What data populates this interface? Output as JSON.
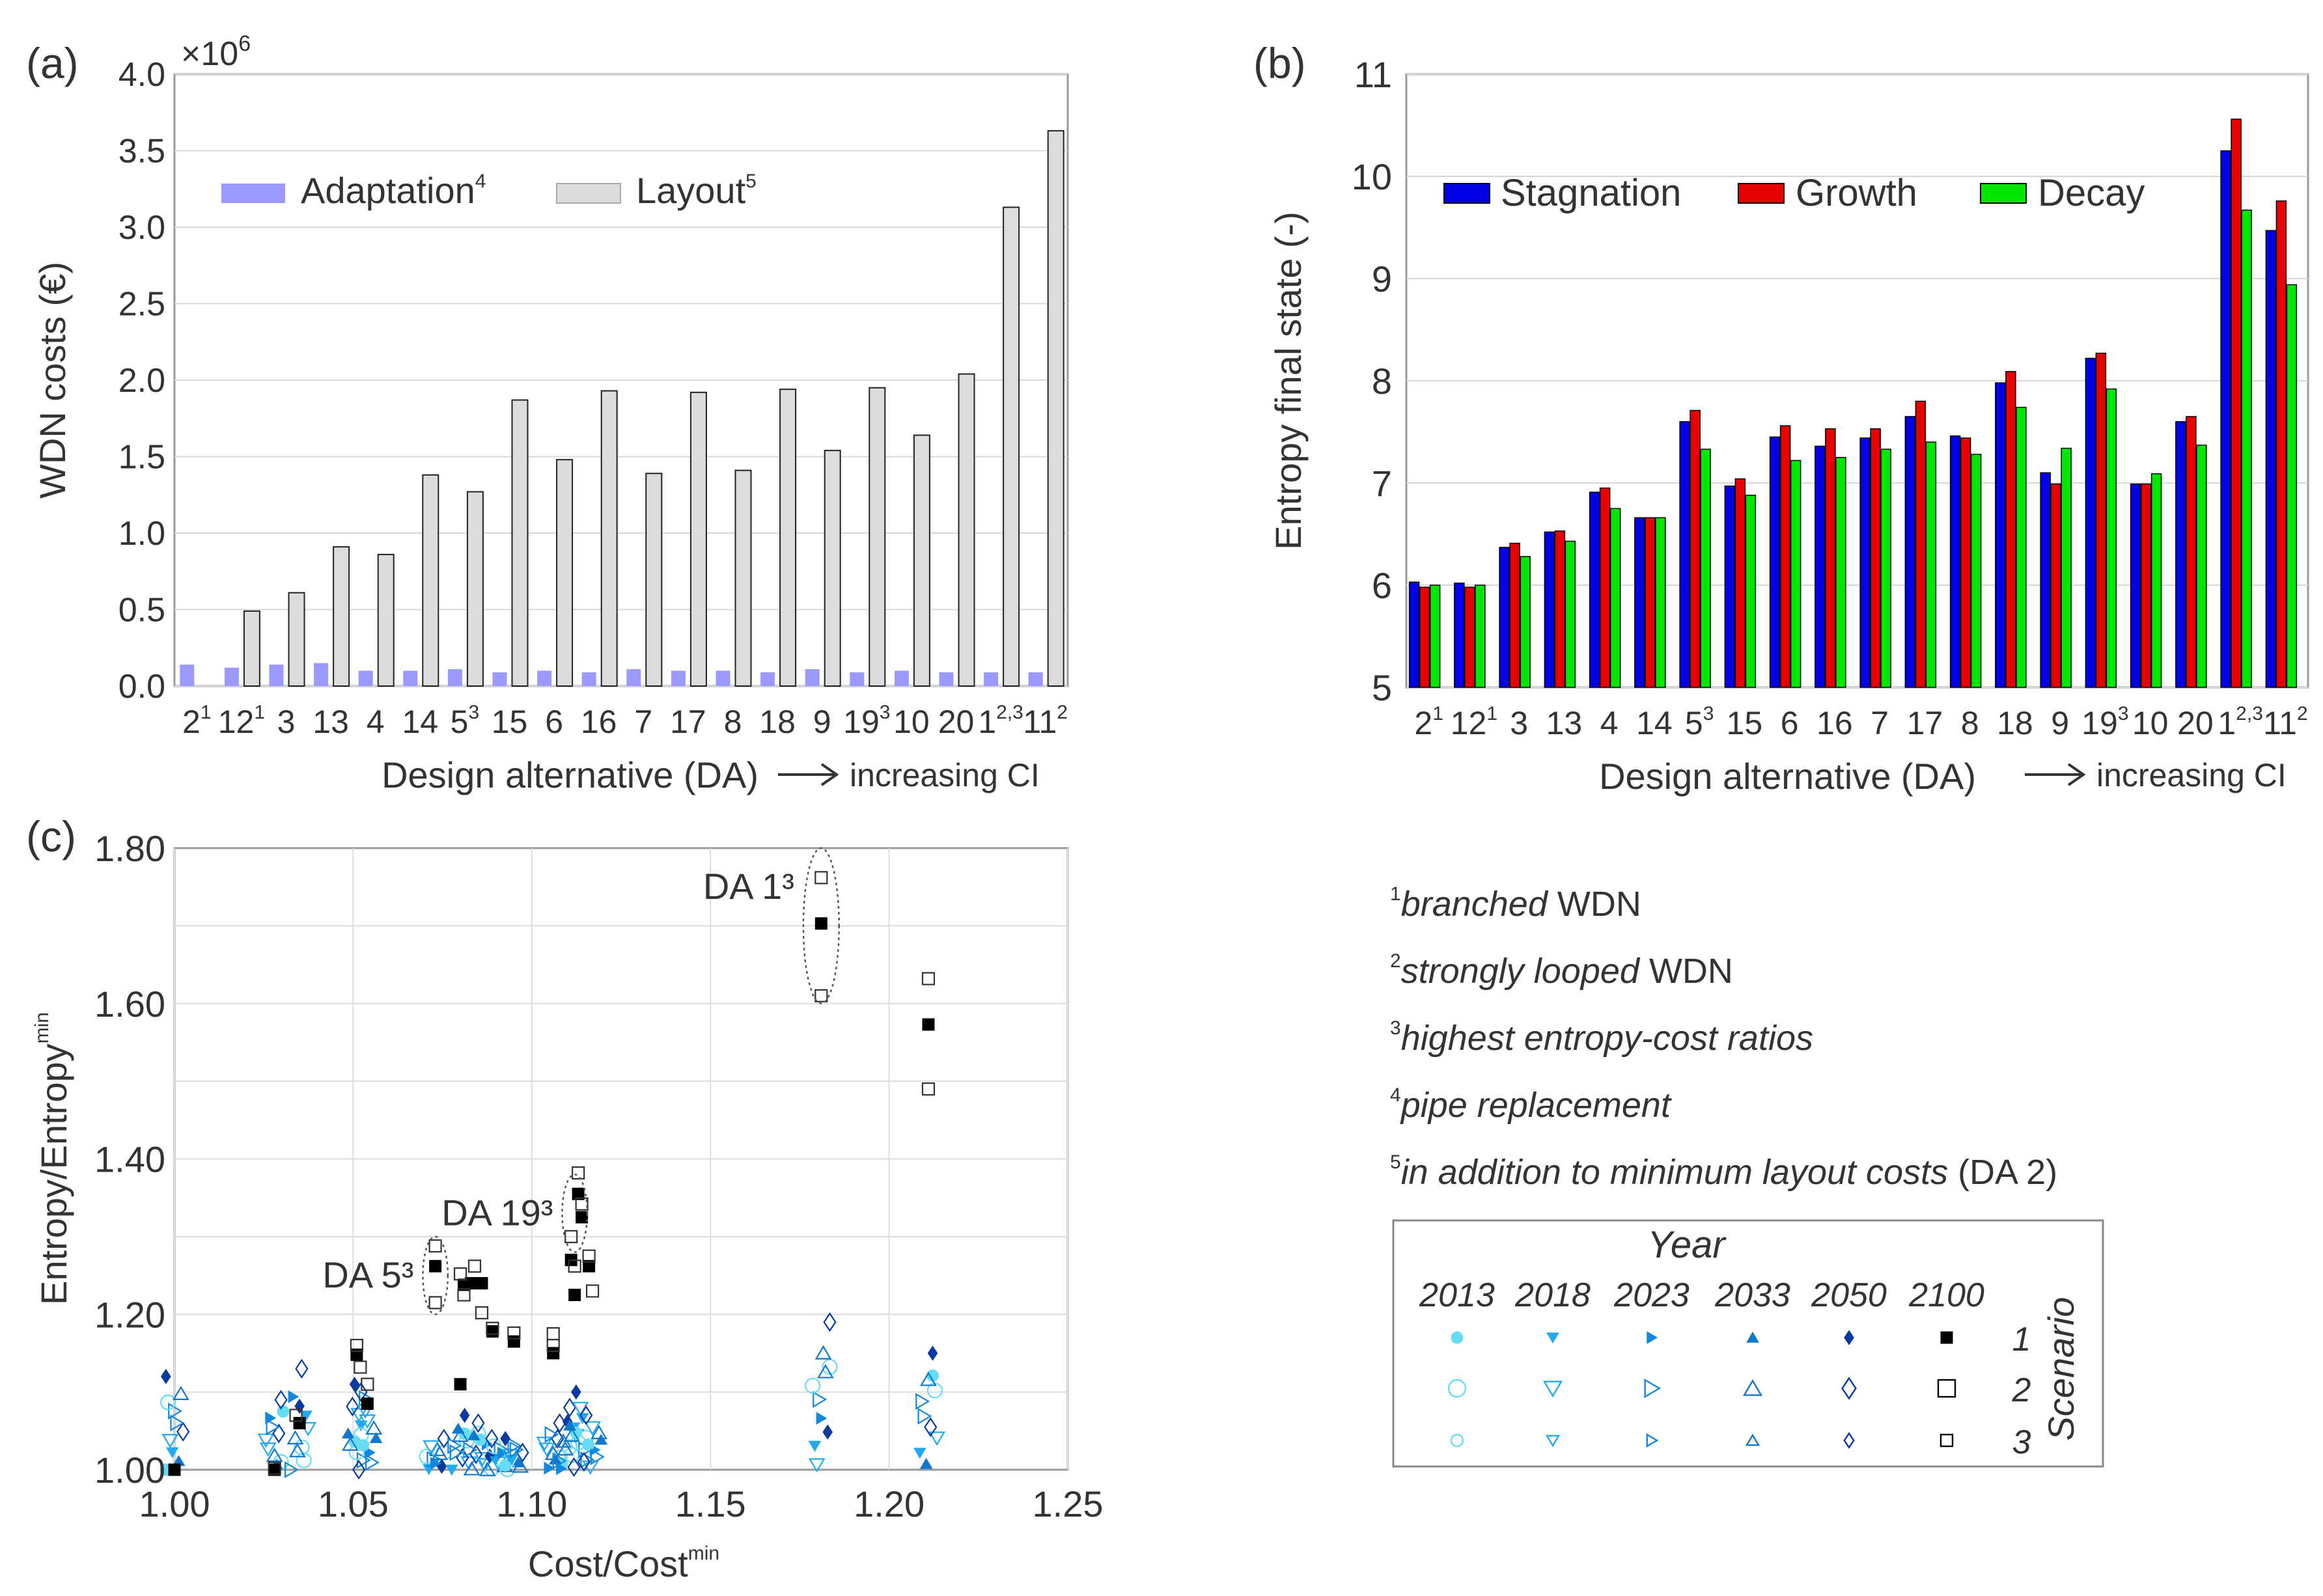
{
  "colors": {
    "adaptation": "#9999ff",
    "layout": "#dcdcdc",
    "stagnation": "#0000e6",
    "growth": "#e60000",
    "decay": "#00e600",
    "y2013": "#66ddf5",
    "y2018": "#22aaee",
    "y2023": "#1188dd",
    "y2033": "#1177cc",
    "y2050": "#0a3a9e",
    "y2100": "#000000"
  },
  "chart_data": [
    {
      "panel": "(a)",
      "type": "bar",
      "xlabel": "Design alternative (DA)",
      "arrow_label": "increasing CI",
      "ylabel": "WDN costs (€)",
      "exponent": "×10",
      "exponent_power": "6",
      "ylim": [
        0,
        4
      ],
      "yticks": [
        "0.0",
        "0.5",
        "1.0",
        "1.5",
        "2.0",
        "2.5",
        "3.0",
        "3.5",
        "4.0"
      ],
      "categories": [
        {
          "n": "2",
          "sup": "1"
        },
        {
          "n": "12",
          "sup": "1"
        },
        {
          "n": "3",
          "sup": ""
        },
        {
          "n": "13",
          "sup": ""
        },
        {
          "n": "4",
          "sup": ""
        },
        {
          "n": "14",
          "sup": ""
        },
        {
          "n": "5",
          "sup": "3"
        },
        {
          "n": "15",
          "sup": ""
        },
        {
          "n": "6",
          "sup": ""
        },
        {
          "n": "16",
          "sup": ""
        },
        {
          "n": "7",
          "sup": ""
        },
        {
          "n": "17",
          "sup": ""
        },
        {
          "n": "8",
          "sup": ""
        },
        {
          "n": "18",
          "sup": ""
        },
        {
          "n": "9",
          "sup": ""
        },
        {
          "n": "19",
          "sup": "3"
        },
        {
          "n": "10",
          "sup": ""
        },
        {
          "n": "20",
          "sup": ""
        },
        {
          "n": "1",
          "sup": "2,3"
        },
        {
          "n": "11",
          "sup": "2"
        }
      ],
      "series": [
        {
          "name": "Adaptation",
          "sup": "4",
          "values": [
            0.14,
            0.12,
            0.14,
            0.15,
            0.1,
            0.1,
            0.11,
            0.09,
            0.1,
            0.09,
            0.11,
            0.1,
            0.1,
            0.09,
            0.11,
            0.09,
            0.1,
            0.09,
            0.09,
            0.09
          ]
        },
        {
          "name": "Layout",
          "sup": "5",
          "values": [
            0.0,
            0.49,
            0.61,
            0.91,
            0.86,
            1.38,
            1.27,
            1.87,
            1.48,
            1.93,
            1.39,
            1.92,
            1.41,
            1.94,
            1.54,
            1.95,
            1.64,
            2.04,
            3.13,
            3.63
          ]
        }
      ]
    },
    {
      "panel": "(b)",
      "type": "bar",
      "xlabel": "Design alternative (DA)",
      "arrow_label": "increasing CI",
      "ylabel": "Entropy final state (-)",
      "ylim": [
        5,
        11
      ],
      "yticks": [
        "5",
        "6",
        "7",
        "8",
        "9",
        "10",
        "11"
      ],
      "categories": [
        {
          "n": "2",
          "sup": "1"
        },
        {
          "n": "12",
          "sup": "1"
        },
        {
          "n": "3",
          "sup": ""
        },
        {
          "n": "13",
          "sup": ""
        },
        {
          "n": "4",
          "sup": ""
        },
        {
          "n": "14",
          "sup": ""
        },
        {
          "n": "5",
          "sup": "3"
        },
        {
          "n": "15",
          "sup": ""
        },
        {
          "n": "6",
          "sup": ""
        },
        {
          "n": "16",
          "sup": ""
        },
        {
          "n": "7",
          "sup": ""
        },
        {
          "n": "17",
          "sup": ""
        },
        {
          "n": "8",
          "sup": ""
        },
        {
          "n": "18",
          "sup": ""
        },
        {
          "n": "9",
          "sup": ""
        },
        {
          "n": "19",
          "sup": "3"
        },
        {
          "n": "10",
          "sup": ""
        },
        {
          "n": "20",
          "sup": ""
        },
        {
          "n": "1",
          "sup": "2,3"
        },
        {
          "n": "11",
          "sup": "2"
        }
      ],
      "series": [
        {
          "name": "Stagnation",
          "values": [
            6.03,
            6.02,
            6.37,
            6.52,
            6.91,
            6.66,
            7.6,
            6.97,
            7.45,
            7.36,
            7.44,
            7.65,
            7.46,
            7.98,
            7.1,
            8.22,
            6.99,
            7.6,
            10.25,
            9.47
          ]
        },
        {
          "name": "Growth",
          "values": [
            5.98,
            5.98,
            6.41,
            6.53,
            6.95,
            6.66,
            7.71,
            7.04,
            7.56,
            7.53,
            7.53,
            7.8,
            7.44,
            8.09,
            6.99,
            8.27,
            6.99,
            7.65,
            10.56,
            9.76
          ]
        },
        {
          "name": "Decay",
          "values": [
            6.0,
            6.0,
            6.28,
            6.43,
            6.75,
            6.66,
            7.33,
            6.88,
            7.22,
            7.25,
            7.33,
            7.4,
            7.28,
            7.74,
            7.34,
            7.92,
            7.09,
            7.37,
            9.67,
            8.94
          ]
        }
      ]
    },
    {
      "panel": "(c)",
      "type": "scatter",
      "xlabel": "Cost/Cost",
      "xlabel_sup": "min",
      "ylabel": "Entropy/Entropy",
      "ylabel_sup": "min",
      "xlim": [
        1.0,
        1.25
      ],
      "ylim": [
        1.0,
        1.8
      ],
      "xticks": [
        "1.00",
        "1.05",
        "1.10",
        "1.15",
        "1.20",
        "1.25"
      ],
      "yticks": [
        "1.00",
        "1.20",
        "1.40",
        "1.60",
        "1.80"
      ],
      "annotations": [
        {
          "text": "DA 1³",
          "x": 1.181,
          "y": 1.7,
          "rx": 0.005,
          "ry": 0.1
        },
        {
          "text": "DA 19³",
          "x": 1.112,
          "y": 1.33,
          "rx": 0.0035,
          "ry": 0.05
        },
        {
          "text": "DA 5³",
          "x": 1.073,
          "y": 1.25,
          "rx": 0.0035,
          "ry": 0.05
        }
      ],
      "points_s1_2100": [
        [
          1.0,
          1.0
        ],
        [
          1.028,
          1.0
        ],
        [
          1.035,
          1.06
        ],
        [
          1.051,
          1.148
        ],
        [
          1.054,
          1.085
        ],
        [
          1.073,
          1.262
        ],
        [
          1.08,
          1.11
        ],
        [
          1.081,
          1.238
        ],
        [
          1.083,
          1.24
        ],
        [
          1.086,
          1.24
        ],
        [
          1.089,
          1.178
        ],
        [
          1.095,
          1.165
        ],
        [
          1.106,
          1.15
        ],
        [
          1.111,
          1.27
        ],
        [
          1.112,
          1.225
        ],
        [
          1.113,
          1.355
        ],
        [
          1.114,
          1.325
        ],
        [
          1.116,
          1.262
        ],
        [
          1.181,
          1.703
        ],
        [
          1.211,
          1.573
        ]
      ],
      "points_s23_2100": [
        [
          1.028,
          1.002
        ],
        [
          1.034,
          1.07
        ],
        [
          1.051,
          1.16
        ],
        [
          1.052,
          1.132
        ],
        [
          1.054,
          1.11
        ],
        [
          1.073,
          1.288
        ],
        [
          1.073,
          1.215
        ],
        [
          1.08,
          1.252
        ],
        [
          1.081,
          1.225
        ],
        [
          1.084,
          1.262
        ],
        [
          1.086,
          1.202
        ],
        [
          1.089,
          1.182
        ],
        [
          1.095,
          1.176
        ],
        [
          1.106,
          1.175
        ],
        [
          1.106,
          1.16
        ],
        [
          1.111,
          1.3
        ],
        [
          1.112,
          1.262
        ],
        [
          1.113,
          1.382
        ],
        [
          1.114,
          1.342
        ],
        [
          1.116,
          1.275
        ],
        [
          1.117,
          1.23
        ],
        [
          1.181,
          1.762
        ],
        [
          1.181,
          1.61
        ],
        [
          1.211,
          1.632
        ],
        [
          1.211,
          1.49
        ]
      ],
      "cluster_x": [
        1.0,
        1.028,
        1.035,
        1.051,
        1.054,
        1.073,
        1.08,
        1.085,
        1.09,
        1.095,
        1.106,
        1.11,
        1.113,
        1.117,
        1.181,
        1.211
      ],
      "cluster_ymax": [
        1.12,
        1.09,
        1.13,
        1.11,
        1.1,
        1.04,
        1.07,
        1.06,
        1.04,
        1.04,
        1.06,
        1.08,
        1.1,
        1.07,
        1.19,
        1.15
      ]
    }
  ],
  "footnotes": [
    {
      "num": "1",
      "italic": "branched",
      "plain": " WDN"
    },
    {
      "num": "2",
      "italic": "strongly looped",
      "plain": " WDN"
    },
    {
      "num": "3",
      "italic": "highest entropy-cost ratios",
      "plain": ""
    },
    {
      "num": "4",
      "italic": "pipe replacement",
      "plain": ""
    },
    {
      "num": "5",
      "italic": "in addition to minimum layout costs",
      "plain": " (DA 2)"
    }
  ],
  "legend_c": {
    "year_title": "Year",
    "years": [
      "2013",
      "2018",
      "2023",
      "2033",
      "2050",
      "2100"
    ],
    "scenario_title": "Scenario",
    "scenarios": [
      "1",
      "2",
      "3"
    ]
  }
}
